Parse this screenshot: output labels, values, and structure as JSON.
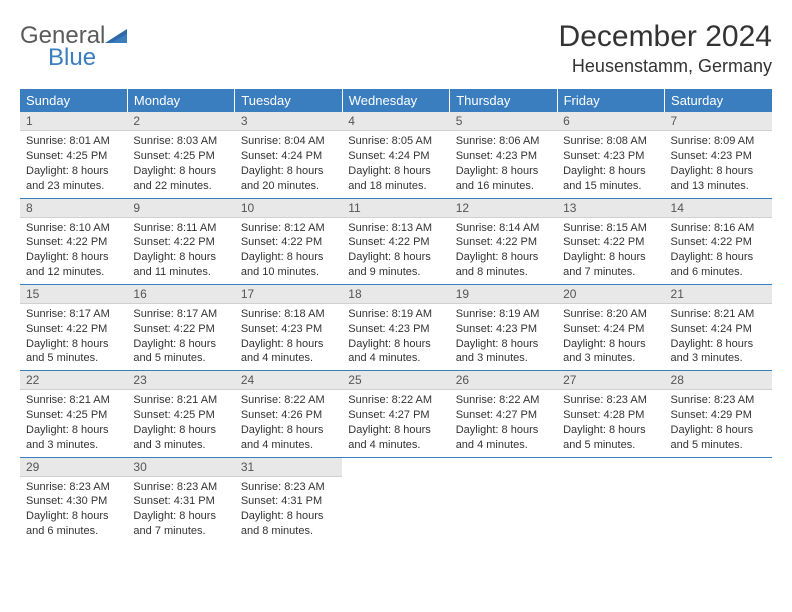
{
  "brand": {
    "general": "General",
    "blue": "Blue"
  },
  "title": "December 2024",
  "location": "Heusenstamm, Germany",
  "colors": {
    "header_bg": "#3a7ebf",
    "header_text": "#ffffff",
    "daynum_bg": "#e8e8e8",
    "border": "#3a7ebf",
    "text": "#333333",
    "logo_gray": "#5b5b5b",
    "logo_blue": "#3a7ebf"
  },
  "dayNames": [
    "Sunday",
    "Monday",
    "Tuesday",
    "Wednesday",
    "Thursday",
    "Friday",
    "Saturday"
  ],
  "weeks": [
    [
      {
        "n": "1",
        "sr": "Sunrise: 8:01 AM",
        "ss": "Sunset: 4:25 PM",
        "dl1": "Daylight: 8 hours",
        "dl2": "and 23 minutes."
      },
      {
        "n": "2",
        "sr": "Sunrise: 8:03 AM",
        "ss": "Sunset: 4:25 PM",
        "dl1": "Daylight: 8 hours",
        "dl2": "and 22 minutes."
      },
      {
        "n": "3",
        "sr": "Sunrise: 8:04 AM",
        "ss": "Sunset: 4:24 PM",
        "dl1": "Daylight: 8 hours",
        "dl2": "and 20 minutes."
      },
      {
        "n": "4",
        "sr": "Sunrise: 8:05 AM",
        "ss": "Sunset: 4:24 PM",
        "dl1": "Daylight: 8 hours",
        "dl2": "and 18 minutes."
      },
      {
        "n": "5",
        "sr": "Sunrise: 8:06 AM",
        "ss": "Sunset: 4:23 PM",
        "dl1": "Daylight: 8 hours",
        "dl2": "and 16 minutes."
      },
      {
        "n": "6",
        "sr": "Sunrise: 8:08 AM",
        "ss": "Sunset: 4:23 PM",
        "dl1": "Daylight: 8 hours",
        "dl2": "and 15 minutes."
      },
      {
        "n": "7",
        "sr": "Sunrise: 8:09 AM",
        "ss": "Sunset: 4:23 PM",
        "dl1": "Daylight: 8 hours",
        "dl2": "and 13 minutes."
      }
    ],
    [
      {
        "n": "8",
        "sr": "Sunrise: 8:10 AM",
        "ss": "Sunset: 4:22 PM",
        "dl1": "Daylight: 8 hours",
        "dl2": "and 12 minutes."
      },
      {
        "n": "9",
        "sr": "Sunrise: 8:11 AM",
        "ss": "Sunset: 4:22 PM",
        "dl1": "Daylight: 8 hours",
        "dl2": "and 11 minutes."
      },
      {
        "n": "10",
        "sr": "Sunrise: 8:12 AM",
        "ss": "Sunset: 4:22 PM",
        "dl1": "Daylight: 8 hours",
        "dl2": "and 10 minutes."
      },
      {
        "n": "11",
        "sr": "Sunrise: 8:13 AM",
        "ss": "Sunset: 4:22 PM",
        "dl1": "Daylight: 8 hours",
        "dl2": "and 9 minutes."
      },
      {
        "n": "12",
        "sr": "Sunrise: 8:14 AM",
        "ss": "Sunset: 4:22 PM",
        "dl1": "Daylight: 8 hours",
        "dl2": "and 8 minutes."
      },
      {
        "n": "13",
        "sr": "Sunrise: 8:15 AM",
        "ss": "Sunset: 4:22 PM",
        "dl1": "Daylight: 8 hours",
        "dl2": "and 7 minutes."
      },
      {
        "n": "14",
        "sr": "Sunrise: 8:16 AM",
        "ss": "Sunset: 4:22 PM",
        "dl1": "Daylight: 8 hours",
        "dl2": "and 6 minutes."
      }
    ],
    [
      {
        "n": "15",
        "sr": "Sunrise: 8:17 AM",
        "ss": "Sunset: 4:22 PM",
        "dl1": "Daylight: 8 hours",
        "dl2": "and 5 minutes."
      },
      {
        "n": "16",
        "sr": "Sunrise: 8:17 AM",
        "ss": "Sunset: 4:22 PM",
        "dl1": "Daylight: 8 hours",
        "dl2": "and 5 minutes."
      },
      {
        "n": "17",
        "sr": "Sunrise: 8:18 AM",
        "ss": "Sunset: 4:23 PM",
        "dl1": "Daylight: 8 hours",
        "dl2": "and 4 minutes."
      },
      {
        "n": "18",
        "sr": "Sunrise: 8:19 AM",
        "ss": "Sunset: 4:23 PM",
        "dl1": "Daylight: 8 hours",
        "dl2": "and 4 minutes."
      },
      {
        "n": "19",
        "sr": "Sunrise: 8:19 AM",
        "ss": "Sunset: 4:23 PM",
        "dl1": "Daylight: 8 hours",
        "dl2": "and 3 minutes."
      },
      {
        "n": "20",
        "sr": "Sunrise: 8:20 AM",
        "ss": "Sunset: 4:24 PM",
        "dl1": "Daylight: 8 hours",
        "dl2": "and 3 minutes."
      },
      {
        "n": "21",
        "sr": "Sunrise: 8:21 AM",
        "ss": "Sunset: 4:24 PM",
        "dl1": "Daylight: 8 hours",
        "dl2": "and 3 minutes."
      }
    ],
    [
      {
        "n": "22",
        "sr": "Sunrise: 8:21 AM",
        "ss": "Sunset: 4:25 PM",
        "dl1": "Daylight: 8 hours",
        "dl2": "and 3 minutes."
      },
      {
        "n": "23",
        "sr": "Sunrise: 8:21 AM",
        "ss": "Sunset: 4:25 PM",
        "dl1": "Daylight: 8 hours",
        "dl2": "and 3 minutes."
      },
      {
        "n": "24",
        "sr": "Sunrise: 8:22 AM",
        "ss": "Sunset: 4:26 PM",
        "dl1": "Daylight: 8 hours",
        "dl2": "and 4 minutes."
      },
      {
        "n": "25",
        "sr": "Sunrise: 8:22 AM",
        "ss": "Sunset: 4:27 PM",
        "dl1": "Daylight: 8 hours",
        "dl2": "and 4 minutes."
      },
      {
        "n": "26",
        "sr": "Sunrise: 8:22 AM",
        "ss": "Sunset: 4:27 PM",
        "dl1": "Daylight: 8 hours",
        "dl2": "and 4 minutes."
      },
      {
        "n": "27",
        "sr": "Sunrise: 8:23 AM",
        "ss": "Sunset: 4:28 PM",
        "dl1": "Daylight: 8 hours",
        "dl2": "and 5 minutes."
      },
      {
        "n": "28",
        "sr": "Sunrise: 8:23 AM",
        "ss": "Sunset: 4:29 PM",
        "dl1": "Daylight: 8 hours",
        "dl2": "and 5 minutes."
      }
    ],
    [
      {
        "n": "29",
        "sr": "Sunrise: 8:23 AM",
        "ss": "Sunset: 4:30 PM",
        "dl1": "Daylight: 8 hours",
        "dl2": "and 6 minutes."
      },
      {
        "n": "30",
        "sr": "Sunrise: 8:23 AM",
        "ss": "Sunset: 4:31 PM",
        "dl1": "Daylight: 8 hours",
        "dl2": "and 7 minutes."
      },
      {
        "n": "31",
        "sr": "Sunrise: 8:23 AM",
        "ss": "Sunset: 4:31 PM",
        "dl1": "Daylight: 8 hours",
        "dl2": "and 8 minutes."
      },
      null,
      null,
      null,
      null
    ]
  ]
}
